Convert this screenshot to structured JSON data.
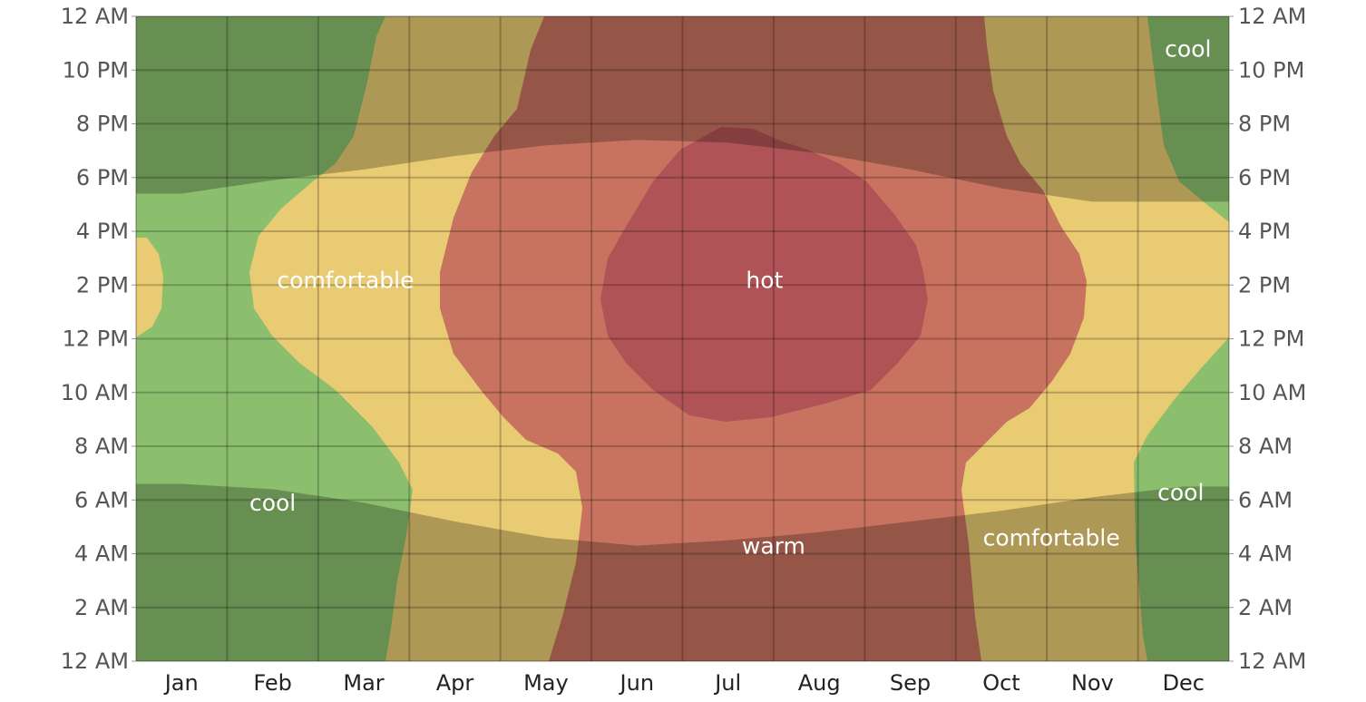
{
  "chart_data": {
    "type": "heatmap",
    "title": "",
    "xlabel": "",
    "ylabel": "",
    "x_categories": [
      "Jan",
      "Feb",
      "Mar",
      "Apr",
      "May",
      "Jun",
      "Jul",
      "Aug",
      "Sep",
      "Oct",
      "Nov",
      "Dec"
    ],
    "y_ticks_left": [
      "12 AM",
      "2 AM",
      "4 AM",
      "6 AM",
      "8 AM",
      "10 AM",
      "12 PM",
      "2 PM",
      "4 PM",
      "6 PM",
      "8 PM",
      "10 PM",
      "12 AM"
    ],
    "y_ticks_right": [
      "12 AM",
      "2 AM",
      "4 AM",
      "6 AM",
      "8 AM",
      "10 AM",
      "12 PM",
      "2 PM",
      "4 PM",
      "6 PM",
      "8 PM",
      "10 PM",
      "12 AM"
    ],
    "y_range_hours": [
      0,
      24
    ],
    "bands": [
      {
        "name": "cool",
        "color": "#8bbf6e"
      },
      {
        "name": "comfortable",
        "color": "#e8cb72"
      },
      {
        "name": "warm",
        "color": "#c8735f"
      },
      {
        "name": "hot",
        "color": "#b05356"
      }
    ],
    "night_shade": {
      "color": "#000000",
      "opacity": 0.25
    },
    "daylight": {
      "months": [
        0.5,
        1.5,
        2.5,
        3.5,
        4.5,
        5.5,
        6.5,
        7.5,
        8.5,
        9.5,
        10.5,
        11.5
      ],
      "sunrise_hours": [
        6.6,
        6.4,
        5.9,
        5.2,
        4.6,
        4.3,
        4.5,
        4.8,
        5.2,
        5.6,
        6.1,
        6.5
      ],
      "sunset_hours": [
        17.4,
        17.9,
        18.3,
        18.8,
        19.2,
        19.4,
        19.3,
        18.9,
        18.3,
        17.6,
        17.1,
        17.1
      ]
    },
    "annotations": [
      {
        "text": "cool",
        "month": 11.55,
        "hour": 22.8
      },
      {
        "text": "comfortable",
        "month": 2.3,
        "hour": 14.2
      },
      {
        "text": "hot",
        "month": 6.9,
        "hour": 14.2
      },
      {
        "text": "cool",
        "month": 1.5,
        "hour": 5.9
      },
      {
        "text": "cool",
        "month": 11.47,
        "hour": 6.3
      },
      {
        "text": "warm",
        "month": 7.0,
        "hour": 4.3
      },
      {
        "text": "comfortable",
        "month": 10.05,
        "hour": 4.6
      }
    ]
  }
}
